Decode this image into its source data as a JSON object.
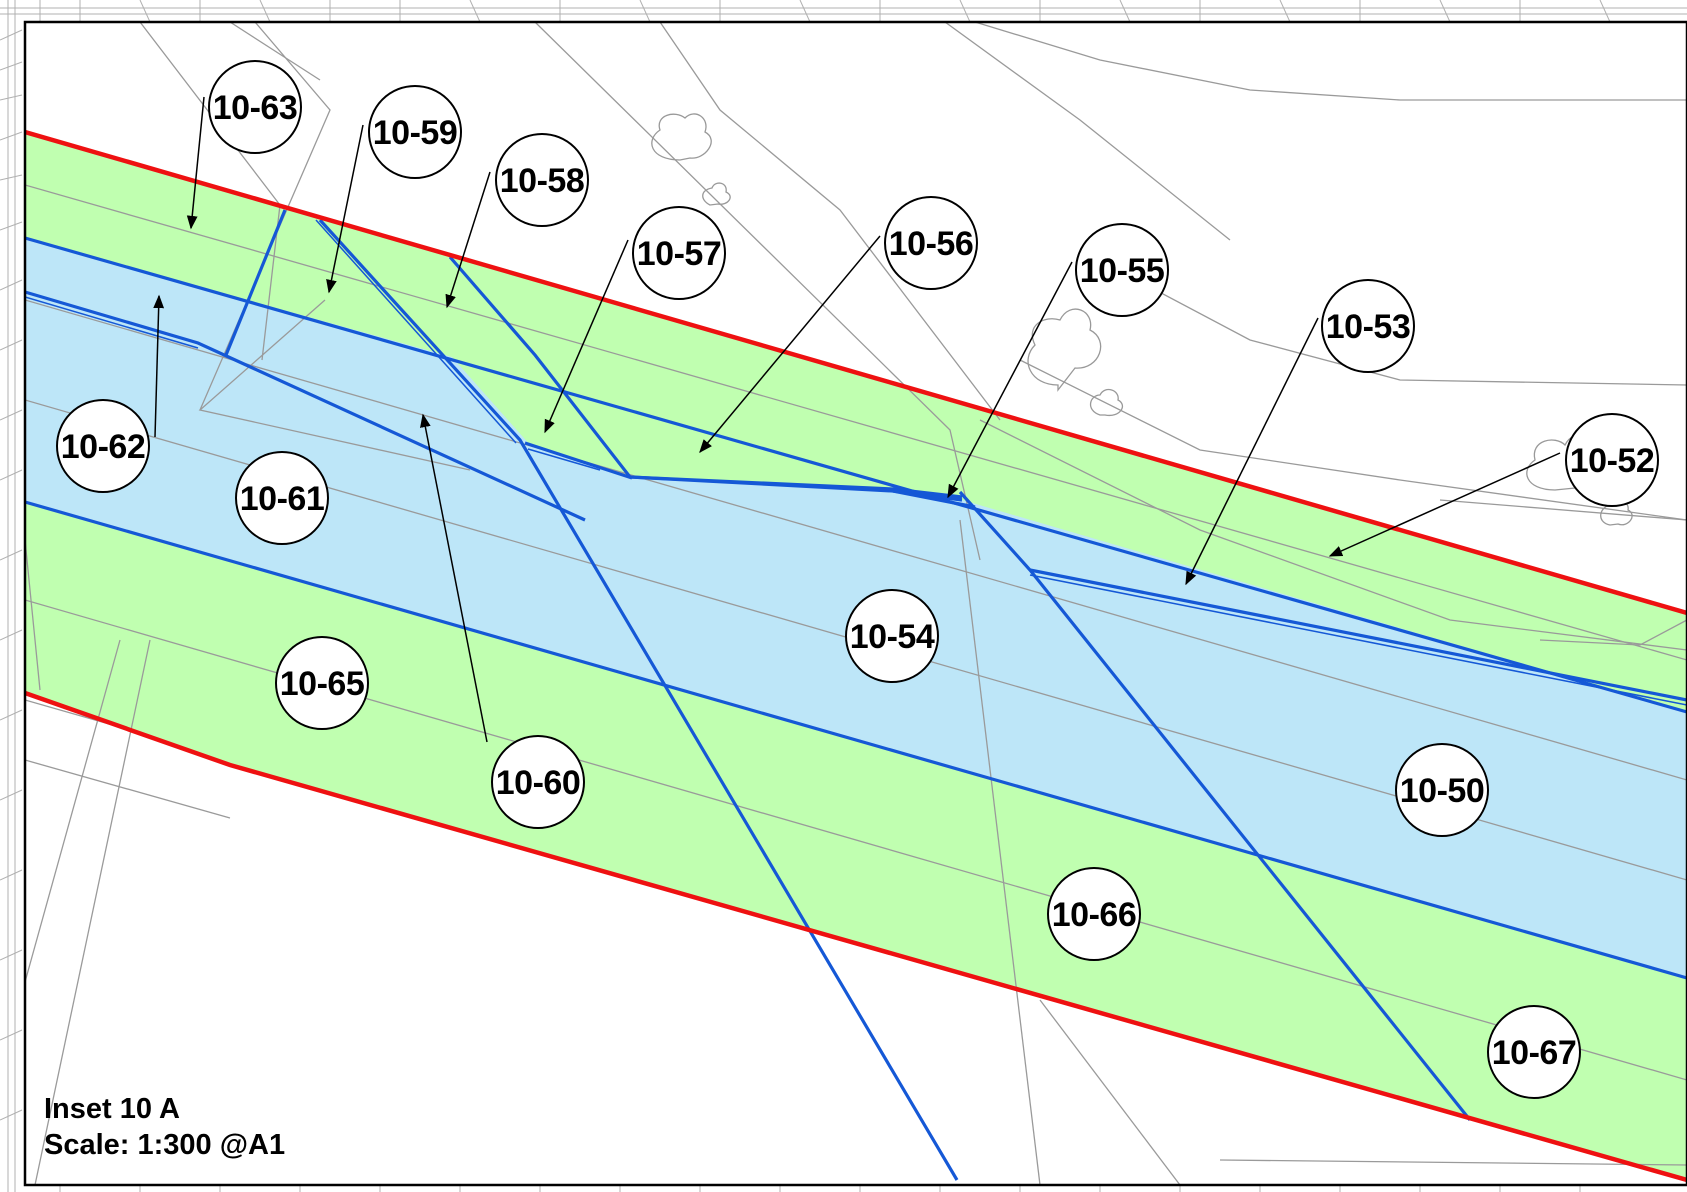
{
  "inset": {
    "title": "Inset 10 A",
    "scale": "Scale: 1:300 @A1"
  },
  "colors": {
    "land_take": "#c0ffb0",
    "water_area": "#bde6f8",
    "red_boundary": "#ee1111",
    "blue_boundary": "#1558d6"
  },
  "plots": [
    {
      "id": "10-63"
    },
    {
      "id": "10-59"
    },
    {
      "id": "10-58"
    },
    {
      "id": "10-57"
    },
    {
      "id": "10-56"
    },
    {
      "id": "10-55"
    },
    {
      "id": "10-53"
    },
    {
      "id": "10-52"
    },
    {
      "id": "10-62"
    },
    {
      "id": "10-61"
    },
    {
      "id": "10-54"
    },
    {
      "id": "10-65"
    },
    {
      "id": "10-60"
    },
    {
      "id": "10-50"
    },
    {
      "id": "10-66"
    },
    {
      "id": "10-67"
    }
  ]
}
